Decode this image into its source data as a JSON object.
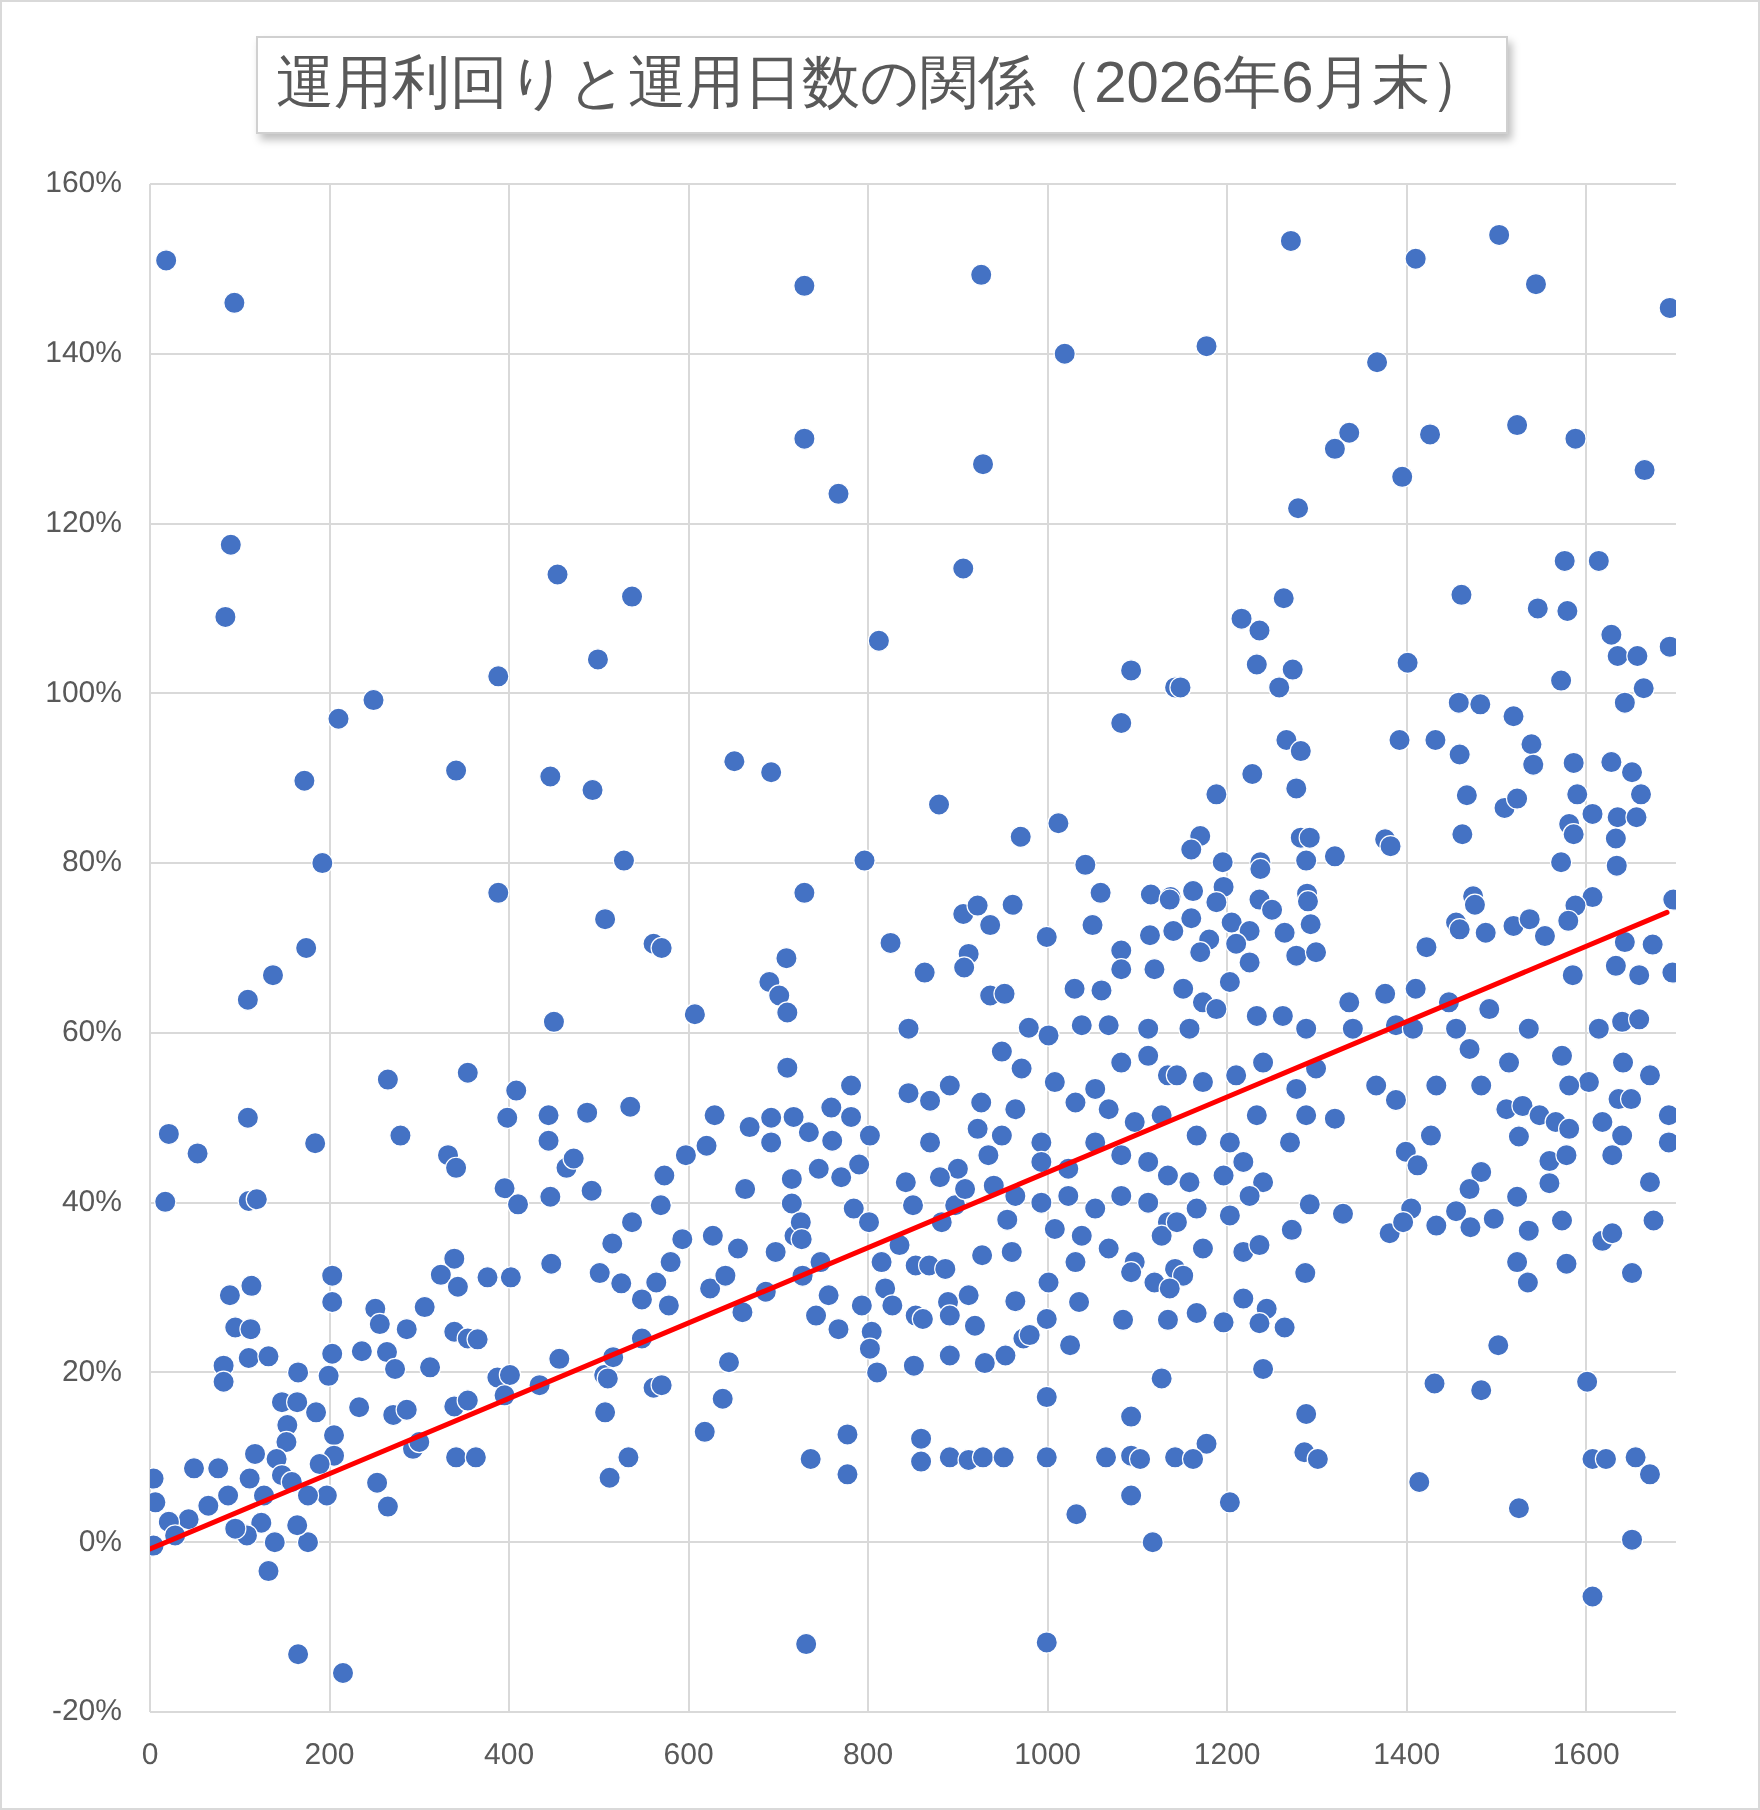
{
  "chart_data": {
    "type": "scatter",
    "title": "運用利回りと運用日数の関係（2026年6月末）",
    "xlim": [
      0,
      1700
    ],
    "xticks": [
      0,
      200,
      400,
      600,
      800,
      1000,
      1200,
      1400,
      1600
    ],
    "ylim": [
      -20,
      160
    ],
    "yticks": [
      {
        "value": -20,
        "label": "-20%"
      },
      {
        "value": 0,
        "label": "0%"
      },
      {
        "value": 20,
        "label": "20%"
      },
      {
        "value": 40,
        "label": "40%"
      },
      {
        "value": 60,
        "label": "60%"
      },
      {
        "value": 80,
        "label": "80%"
      },
      {
        "value": 100,
        "label": "100%"
      },
      {
        "value": 120,
        "label": "120%"
      },
      {
        "value": 140,
        "label": "140%"
      },
      {
        "value": 160,
        "label": "160%"
      }
    ],
    "grid": true,
    "marker": "circle",
    "series": [
      {
        "color": "#4472c4",
        "x": [
          18,
          94,
          90,
          84,
          454,
          537,
          499,
          388,
          249,
          210,
          172,
          341,
          446,
          493,
          192,
          388,
          528,
          507,
          174,
          561,
          729,
          926,
          1019,
          729,
          928,
          767,
          906,
          812,
          1093,
          1142,
          1082,
          651,
          692,
          879,
          970,
          1012,
          796,
          1042,
          1059,
          729,
          1115,
          1137,
          906,
          922,
          936,
          961,
          1050,
          999,
          1114,
          1082,
          825,
          912,
          1271,
          1410,
          1503,
          1544,
          1693,
          1177,
          1367,
          1320,
          1336,
          1426,
          1395,
          1523,
          1588,
          1665,
          1279,
          1576,
          1614,
          1263,
          1216,
          1236,
          1461,
          1546,
          1579,
          1628,
          1635,
          1657,
          1693,
          1233,
          1273,
          1258,
          1401,
          1572,
          1148,
          1664,
          1643,
          1458,
          1482,
          1519,
          1266,
          1282,
          1392,
          1432,
          1459,
          1539,
          1541,
          1586,
          1628,
          1651,
          1228,
          1277,
          1188,
          1467,
          1509,
          1523,
          1590,
          1661,
          1607,
          1635,
          1656,
          1462,
          1581,
          1586,
          1633,
          1170,
          1160,
          1282,
          1292,
          1376,
          1382,
          1320,
          1288,
          1195,
          1237,
          1572,
          1634,
          1237,
          1196,
          1289,
          1290,
          1697,
          1474,
          1476,
          1607,
          1588,
          1136,
          1162,
          1188,
          1236,
          1455,
          1459,
          1488,
          1519,
          1537,
          1554,
          1580,
          1643,
          1674,
          1422,
          1293,
          1264,
          1140,
          1160,
          1180,
          1205,
          1225,
          1250,
          1210,
          1170,
          137,
          109,
          450,
          265,
          354,
          408,
          21,
          53,
          109,
          184,
          279,
          398,
          444,
          487,
          535,
          444,
          332,
          341,
          464,
          472,
          395,
          410,
          446,
          492,
          17,
          110,
          119,
          537,
          515,
          447,
          339,
          324,
          343,
          376,
          402,
          501,
          525,
          548,
          203,
          203,
          113,
          89,
          95,
          112,
          110,
          132,
          82,
          82,
          165,
          199,
          203,
          236,
          251,
          256,
          264,
          273,
          286,
          306,
          312,
          339,
          354,
          365,
          387,
          401,
          395,
          434,
          456,
          506,
          516,
          510,
          548,
          561,
          507,
          533,
          512,
          233,
          271,
          286,
          293,
          300,
          339,
          354,
          341,
          363,
          147,
          164,
          185,
          153,
          152,
          141,
          117,
          205,
          205,
          189,
          253,
          265,
          197,
          176,
          176,
          164,
          139,
          124,
          108,
          95,
          111,
          87,
          76,
          49,
          65,
          43,
          21,
          4,
          6,
          4,
          28,
          132,
          165,
          215,
          147,
          158,
          127,
          570,
          709,
          690,
          701,
          710,
          607,
          863,
          907,
          936,
          952,
          845,
          710,
          781,
          845,
          869,
          891,
          629,
          668,
          692,
          692,
          717,
          734,
          759,
          760,
          781,
          802,
          869,
          620,
          597,
          573,
          569,
          663,
          715,
          715,
          784,
          718,
          801,
          725,
          726,
          842,
          850,
          882,
          897,
          908,
          934,
          922,
          926,
          949,
          993,
          593,
          627,
          655,
          580,
          564,
          578,
          624,
          641,
          660,
          686,
          697,
          727,
          747,
          756,
          742,
          767,
          793,
          804,
          819,
          827,
          853,
          868,
          886,
          853,
          861,
          889,
          891,
          912,
          919,
          927,
          960,
          964,
          973,
          980,
          999,
          1025,
          1035,
          1001,
          953,
          930,
          891,
          802,
          810,
          851,
          645,
          570,
          638,
          618,
          736,
          777,
          777,
          859,
          859,
          891,
          912,
          928,
          951,
          999,
          999,
          1065,
          1093,
          1093,
          1103,
          1142,
          1093,
          1032,
          1117,
          1127,
          1084,
          1134,
          731,
          999,
          1030,
          1060,
          1082,
          1119,
          1068,
          1112,
          1038,
          979,
          1001,
          949,
          971,
          1008,
          1053,
          1082,
          1112,
          1134,
          1068,
          1097,
          1127,
          1031,
          964,
          993,
          1023,
          1053,
          1082,
          1112,
          1134,
          964,
          993,
          1023,
          1053,
          1082,
          1112,
          1134,
          1008,
          1038,
          1068,
          1097,
          1127,
          1031,
          1119,
          1093,
          1142,
          900,
          880,
          940,
          955,
          835,
          815,
          770,
          790,
          745,
          1696,
          1659,
          1633,
          1585,
          1492,
          1447,
          1410,
          1376,
          1336,
          1340,
          1388,
          1407,
          1455,
          1470,
          1514,
          1536,
          1573,
          1614,
          1640,
          1659,
          1641,
          1671,
          1603,
          1581,
          1636,
          1650,
          1483,
          1433,
          1366,
          1388,
          1320,
          1511,
          1529,
          1548,
          1566,
          1581,
          1618,
          1640,
          1692,
          1692,
          1427,
          1525,
          1629,
          1399,
          1412,
          1559,
          1578,
          1559,
          1671,
          1483,
          1470,
          1523,
          1405,
          1381,
          1396,
          1433,
          1455,
          1471,
          1497,
          1536,
          1573,
          1618,
          1629,
          1675,
          1329,
          1292,
          1272,
          1287,
          1523,
          1535,
          1578,
          1651,
          1218,
          1244,
          1236,
          1264,
          1196,
          1166,
          1240,
          1502,
          1431,
          1483,
          1601,
          1288,
          1286,
          1301,
          1177,
          1162,
          1203,
          1414,
          1525,
          1607,
          1622,
          1655,
          1671,
          1651,
          1607,
          1151,
          1173,
          1203,
          1225,
          1277,
          1299,
          1233,
          1262,
          1288,
          1158,
          1188,
          1144,
          1173,
          1210,
          1240,
          1277,
          1299,
          1288,
          1233,
          1270,
          1203,
          1166,
          1218,
          1196,
          1240,
          1158,
          1166,
          1203,
          1225,
          1144,
          1173,
          1218,
          1236,
          1151,
          1136
        ],
        "values": [
          151,
          146,
          117.5,
          109,
          114,
          111.4,
          104,
          102,
          99.2,
          97,
          89.7,
          90.9,
          90.2,
          88.6,
          80,
          76.5,
          80.3,
          73.4,
          70,
          70.5,
          148,
          149.3,
          140,
          130,
          127,
          123.5,
          114.7,
          106.2,
          102.7,
          100.7,
          96.5,
          92,
          90.7,
          86.9,
          83.1,
          84.7,
          80.3,
          79.8,
          76.5,
          76.5,
          76.3,
          76,
          74,
          75,
          72.7,
          75.1,
          72.7,
          71.3,
          71.5,
          69.7,
          70.6,
          69.3,
          153.3,
          151.2,
          154,
          148.2,
          145.4,
          140.9,
          139,
          128.8,
          130.7,
          130.5,
          125.5,
          131.6,
          130,
          126.3,
          121.8,
          115.6,
          115.6,
          111.2,
          108.8,
          107.4,
          111.6,
          110,
          109.7,
          106.9,
          104.4,
          104.4,
          105.5,
          103.4,
          102.8,
          100.7,
          103.6,
          101.5,
          100.7,
          100.6,
          98.9,
          98.9,
          98.7,
          97.3,
          94.5,
          93.2,
          94.5,
          94.5,
          92.8,
          94,
          91.6,
          91.8,
          91.9,
          90.7,
          90.5,
          88.8,
          88.1,
          88,
          86.5,
          87.6,
          88.1,
          88.1,
          85.8,
          85.4,
          85.4,
          83.4,
          84.6,
          83.4,
          82.9,
          83.2,
          81.6,
          83,
          83,
          82.8,
          82,
          80.8,
          80.3,
          80.1,
          80.1,
          80.1,
          79.7,
          79.3,
          77.2,
          76.4,
          75.5,
          75.7,
          76.1,
          75.1,
          76,
          75,
          75.7,
          76.7,
          75.4,
          75.7,
          73,
          72.2,
          71.8,
          72.6,
          73.4,
          71.4,
          73.2,
          70.7,
          70.4,
          70.1,
          72.8,
          71.8,
          72,
          73.5,
          71,
          73,
          72,
          74.5,
          70.5,
          69.5,
          66.8,
          63.9,
          61.3,
          54.5,
          55.3,
          53.2,
          48.1,
          45.8,
          50,
          47,
          47.9,
          50,
          50.3,
          50.6,
          51.3,
          47.3,
          45.6,
          44.1,
          44.1,
          45.2,
          41.7,
          39.8,
          40.7,
          41.4,
          40.1,
          40.2,
          40.4,
          37.7,
          35.2,
          32.8,
          33.4,
          31.5,
          30.1,
          31.2,
          31.2,
          31.7,
          30.5,
          28.6,
          31.4,
          28.3,
          30.2,
          29.1,
          25.3,
          25.1,
          21.7,
          21.9,
          20.8,
          18.9,
          20,
          19.6,
          22.2,
          22.5,
          27.5,
          25.7,
          22.4,
          20.4,
          25.1,
          27.7,
          20.6,
          24.8,
          24,
          23.9,
          19.4,
          19.7,
          17.3,
          18.5,
          21.6,
          19.7,
          21.8,
          19.3,
          24,
          18.2,
          15.3,
          10,
          7.6,
          15.9,
          15,
          15.6,
          11,
          11.8,
          16,
          16.7,
          10,
          10,
          16.5,
          16.5,
          15.3,
          13.8,
          11.8,
          9.8,
          10.4,
          12.6,
          10.2,
          9.2,
          7,
          4.2,
          5.5,
          5.5,
          0,
          2,
          0,
          2.3,
          0.8,
          1.6,
          7.5,
          5.5,
          8.7,
          8.7,
          4.3,
          2.7,
          2.4,
          7.5,
          4.7,
          -0.4,
          0.8,
          -3.4,
          -13.2,
          -15.4,
          7.9,
          7.1,
          5.5,
          70,
          68.8,
          66,
          64.4,
          62.4,
          62.2,
          67.1,
          67.7,
          64.4,
          64.6,
          60.5,
          55.9,
          53.8,
          52.9,
          52,
          53.8,
          50.3,
          48.9,
          50,
          47.1,
          50.1,
          48.3,
          51.2,
          47.3,
          50.1,
          47.9,
          47.1,
          46.7,
          45.6,
          43.2,
          39.7,
          41.6,
          42.8,
          39.9,
          39.3,
          36.1,
          37.7,
          37.7,
          35.7,
          42.4,
          39.7,
          37.7,
          39.7,
          41.6,
          45.6,
          48.7,
          51.8,
          47.9,
          47.1,
          35.7,
          36.1,
          34.6,
          33,
          30.6,
          27.9,
          29.9,
          31.4,
          27.1,
          29.5,
          34.2,
          31.4,
          33,
          29.1,
          26.7,
          25.1,
          27.9,
          24.8,
          29.9,
          27.9,
          32.6,
          32.6,
          32.2,
          26.7,
          26.3,
          28.3,
          26.7,
          29.1,
          25.5,
          33.8,
          34.2,
          28.4,
          24,
          24.4,
          26.3,
          23.2,
          28.3,
          30.6,
          22,
          21.1,
          22,
          22.8,
          20,
          20.8,
          21.2,
          18.5,
          16.9,
          13,
          9.8,
          12.7,
          8,
          12.2,
          9.5,
          10,
          9.7,
          10,
          10,
          10,
          17.1,
          10,
          14.8,
          10.2,
          9.8,
          10,
          5.5,
          3.3,
          0,
          19.3,
          26.2,
          26.2,
          -12,
          -11.8,
          65.2,
          65,
          67.5,
          67.5,
          60.9,
          60.5,
          60.9,
          60.6,
          59.7,
          57.8,
          55.8,
          54.2,
          53.4,
          56.5,
          57.3,
          55,
          51,
          49.5,
          50.3,
          51.8,
          51,
          44.8,
          44,
          47.1,
          45.6,
          44.8,
          43.2,
          40.8,
          40,
          40.8,
          39.3,
          40.8,
          40,
          37.7,
          36.9,
          36.1,
          34.6,
          33,
          36.1,
          33,
          30.6,
          31.8,
          32.2,
          44,
          43,
          42,
          38,
          35,
          33,
          43,
          44.5,
          44,
          67.1,
          66.8,
          67.9,
          66.8,
          62.8,
          63.6,
          65.2,
          64.6,
          63.6,
          60.5,
          60.9,
          60.5,
          60.5,
          58.1,
          56.5,
          60.5,
          57.3,
          60.5,
          61.3,
          61.6,
          56.5,
          55,
          54.2,
          53.8,
          52.2,
          52.2,
          53.8,
          53.8,
          53.8,
          52.1,
          49.9,
          51,
          51.4,
          50.3,
          49.5,
          48.7,
          49.5,
          47.9,
          50.3,
          47.1,
          47.9,
          47.8,
          45.6,
          46,
          44.4,
          44.9,
          45.6,
          42.3,
          42.4,
          43.6,
          41.6,
          40.7,
          39.3,
          36.4,
          37.7,
          37.3,
          39,
          37.1,
          38.1,
          36.7,
          37.9,
          35.5,
          36.4,
          37.9,
          38.7,
          39.8,
          36.8,
          31.7,
          33,
          30.6,
          32.8,
          31.7,
          28.7,
          27.5,
          25.8,
          25.3,
          25.9,
          27,
          20.4,
          23.2,
          18.7,
          17.9,
          18.9,
          15.1,
          10.6,
          9.8,
          11.6,
          9.8,
          4.7,
          7.1,
          4,
          9.8,
          9.8,
          10,
          8,
          0.3,
          -6.4,
          65.2,
          63.6,
          66,
          68.3,
          69.1,
          69.5,
          62,
          62,
          60.5,
          60.5,
          62.8,
          55,
          54.2,
          55,
          56.5,
          53.4,
          55.8,
          50.3,
          50.3,
          47.1,
          47.1,
          47.9,
          44.8,
          43.2,
          42.4,
          42.4,
          39.3,
          38.5,
          40.8,
          37.7,
          34.6,
          34.2,
          35,
          31.4,
          29.9
        ]
      },
      {
        "type": "line",
        "color": "#ff0000",
        "marker": "none",
        "x": [
          0,
          1690
        ],
        "values": [
          -0.8,
          74.2
        ]
      }
    ]
  }
}
